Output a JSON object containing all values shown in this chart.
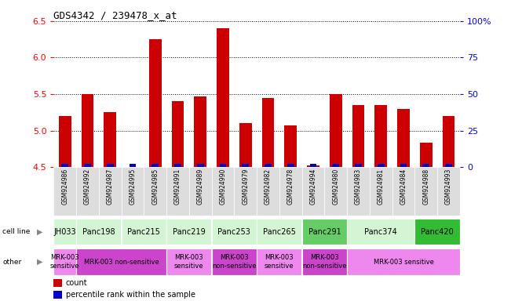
{
  "title": "GDS4342 / 239478_x_at",
  "samples": [
    "GSM924986",
    "GSM924992",
    "GSM924987",
    "GSM924995",
    "GSM924985",
    "GSM924991",
    "GSM924989",
    "GSM924990",
    "GSM924979",
    "GSM924982",
    "GSM924978",
    "GSM924994",
    "GSM924980",
    "GSM924983",
    "GSM924981",
    "GSM924984",
    "GSM924988",
    "GSM924993"
  ],
  "counts": [
    5.2,
    5.5,
    5.25,
    4.5,
    6.25,
    5.4,
    5.47,
    6.4,
    5.1,
    5.45,
    5.07,
    4.52,
    5.5,
    5.35,
    5.35,
    5.3,
    4.83,
    5.2
  ],
  "percentiles": [
    3,
    5,
    3,
    1,
    5,
    4,
    6,
    7,
    4,
    3,
    1,
    2,
    4,
    3,
    4,
    3,
    2,
    3
  ],
  "cell_lines": [
    {
      "name": "JH033",
      "start": 0,
      "end": 1,
      "color": "#d4f5d4"
    },
    {
      "name": "Panc198",
      "start": 1,
      "end": 3,
      "color": "#d4f5d4"
    },
    {
      "name": "Panc215",
      "start": 3,
      "end": 5,
      "color": "#d4f5d4"
    },
    {
      "name": "Panc219",
      "start": 5,
      "end": 7,
      "color": "#d4f5d4"
    },
    {
      "name": "Panc253",
      "start": 7,
      "end": 9,
      "color": "#d4f5d4"
    },
    {
      "name": "Panc265",
      "start": 9,
      "end": 11,
      "color": "#d4f5d4"
    },
    {
      "name": "Panc291",
      "start": 11,
      "end": 13,
      "color": "#66cc66"
    },
    {
      "name": "Panc374",
      "start": 13,
      "end": 16,
      "color": "#d4f5d4"
    },
    {
      "name": "Panc420",
      "start": 16,
      "end": 18,
      "color": "#33bb33"
    }
  ],
  "other_groups": [
    {
      "name": "MRK-003\nsensitive",
      "start": 0,
      "end": 1,
      "color": "#ee88ee"
    },
    {
      "name": "MRK-003 non-sensitive",
      "start": 1,
      "end": 5,
      "color": "#cc44cc"
    },
    {
      "name": "MRK-003\nsensitive",
      "start": 5,
      "end": 7,
      "color": "#ee88ee"
    },
    {
      "name": "MRK-003\nnon-sensitive",
      "start": 7,
      "end": 9,
      "color": "#cc44cc"
    },
    {
      "name": "MRK-003\nsensitive",
      "start": 9,
      "end": 11,
      "color": "#ee88ee"
    },
    {
      "name": "MRK-003\nnon-sensitive",
      "start": 11,
      "end": 13,
      "color": "#cc44cc"
    },
    {
      "name": "MRK-003 sensitive",
      "start": 13,
      "end": 18,
      "color": "#ee88ee"
    }
  ],
  "ylim": [
    4.5,
    6.5
  ],
  "yticks": [
    4.5,
    5.0,
    5.5,
    6.0,
    6.5
  ],
  "y2ticks": [
    0,
    25,
    50,
    75,
    100
  ],
  "bar_color": "#cc0000",
  "percentile_color": "#0000cc",
  "baseline": 4.5,
  "tick_bg_color": "#dddddd",
  "label_fontsize": 7,
  "tick_fontsize": 7,
  "bar_width": 0.55
}
